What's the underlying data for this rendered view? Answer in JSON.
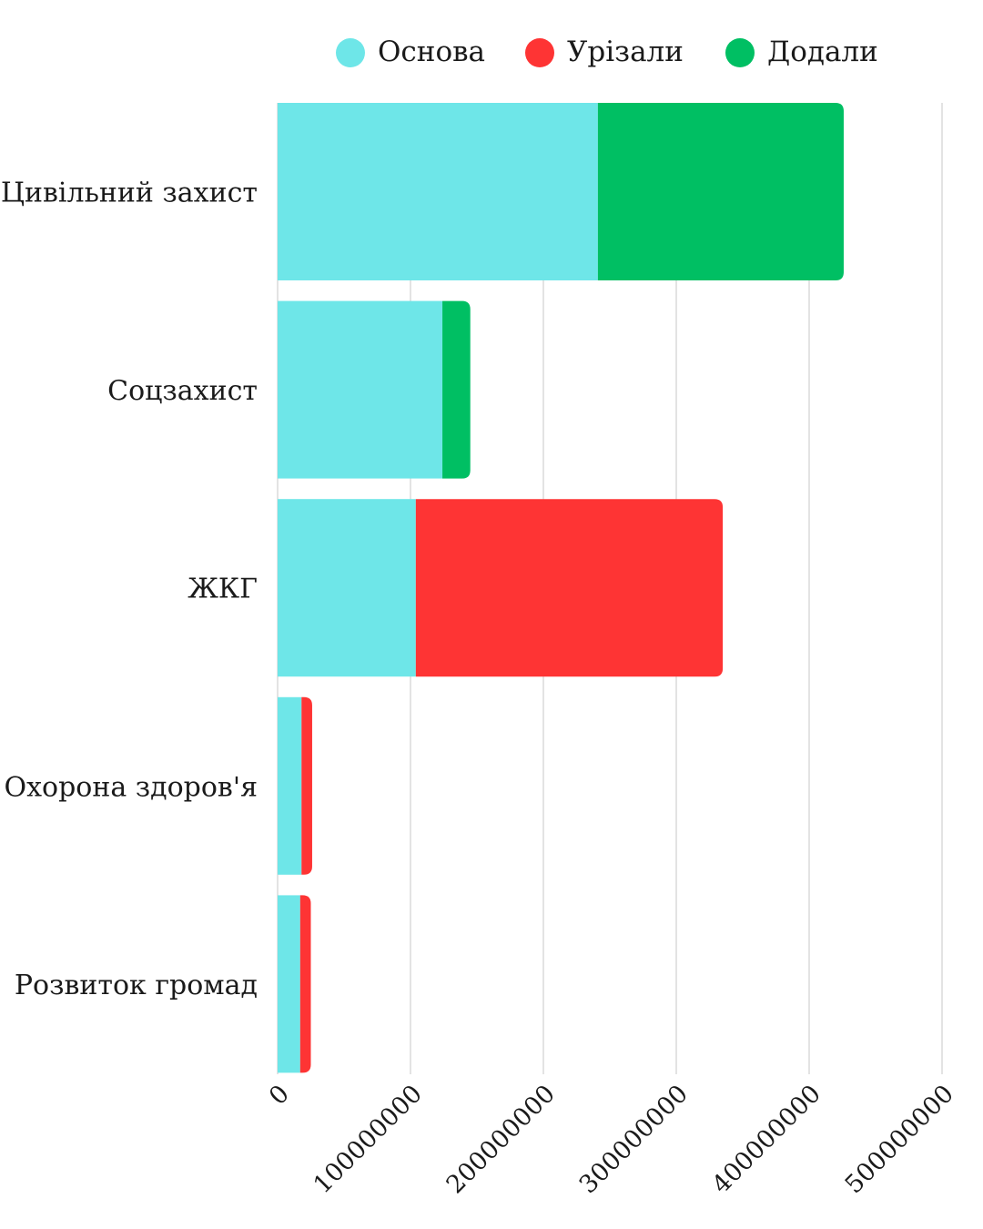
{
  "chart_data": {
    "type": "bar",
    "orientation": "horizontal",
    "stacked": true,
    "categories": [
      "Цивільний захист",
      "Соцзахист",
      "ЖКГ",
      "Охорона здоров'я",
      "Розвиток громад"
    ],
    "series": [
      {
        "name": "Основа",
        "color": "#6ee6e8",
        "values": [
          241000000,
          124000000,
          104000000,
          18000000,
          17000000
        ]
      },
      {
        "name": "Урізали",
        "color": "#fe3434",
        "values": [
          0,
          0,
          231000000,
          8000000,
          8000000
        ]
      },
      {
        "name": "Додали",
        "color": "#00bf63",
        "values": [
          185000000,
          21000000,
          0,
          0,
          0
        ]
      }
    ],
    "xlim": [
      0,
      500000000
    ],
    "xticks": [
      "0",
      "100000000",
      "200000000",
      "300000000",
      "400000000",
      "500000000"
    ],
    "grid": true,
    "legend": "top"
  }
}
